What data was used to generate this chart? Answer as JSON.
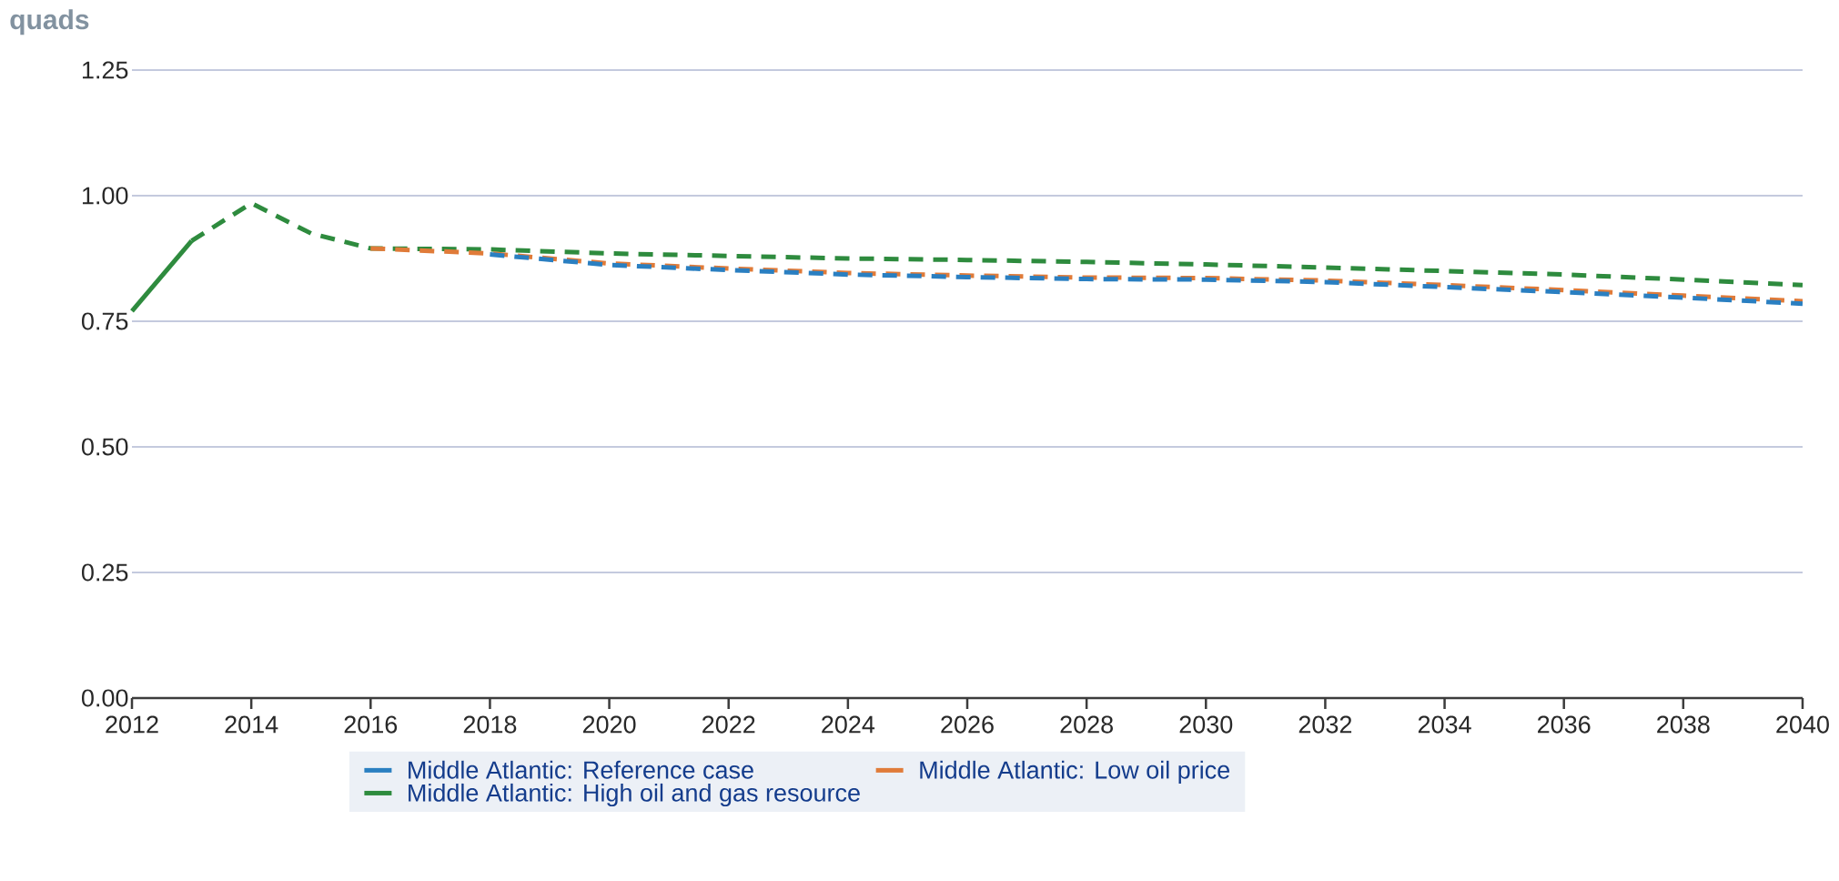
{
  "chart_data": {
    "type": "line",
    "ylabel": "quads",
    "xlim": [
      2012,
      2040
    ],
    "ylim": [
      0,
      1.25
    ],
    "xticks": [
      2012,
      2014,
      2016,
      2018,
      2020,
      2022,
      2024,
      2026,
      2028,
      2030,
      2032,
      2034,
      2036,
      2038,
      2040
    ],
    "yticks": [
      {
        "value": 0,
        "label": "0.00"
      },
      {
        "value": 0.25,
        "label": "0.25"
      },
      {
        "value": 0.5,
        "label": "0.50"
      },
      {
        "value": 0.75,
        "label": "0.75"
      },
      {
        "value": 1,
        "label": "1.00"
      },
      {
        "value": 1.25,
        "label": "1.25"
      }
    ],
    "grid": "y",
    "legend": "bottom",
    "series": [
      {
        "name": "Middle Atlantic: Reference case",
        "color": "#2a7fc1",
        "line_style": "dashed",
        "x": [
          2018,
          2020,
          2022,
          2024,
          2026,
          2028,
          2030,
          2032,
          2034,
          2036,
          2038,
          2040
        ],
        "values": [
          0.883,
          0.862,
          0.852,
          0.843,
          0.838,
          0.834,
          0.833,
          0.828,
          0.818,
          0.808,
          0.797,
          0.785
        ]
      },
      {
        "name": "Middle Atlantic: Low oil price",
        "color": "#e07b39",
        "line_style": "dashed",
        "x": [
          2016,
          2018,
          2020,
          2022,
          2024,
          2026,
          2028,
          2030,
          2032,
          2034,
          2036,
          2038,
          2040
        ],
        "values": [
          0.895,
          0.885,
          0.865,
          0.855,
          0.846,
          0.841,
          0.837,
          0.836,
          0.831,
          0.822,
          0.812,
          0.801,
          0.79
        ]
      },
      {
        "name": "Middle Atlantic: High oil and gas resource",
        "color": "#2e8b3e",
        "line_style": "dashed",
        "x": [
          2013,
          2014,
          2015,
          2016,
          2018,
          2020,
          2022,
          2024,
          2026,
          2028,
          2030,
          2032,
          2034,
          2036,
          2038,
          2040
        ],
        "values": [
          0.91,
          0.985,
          0.925,
          0.895,
          0.893,
          0.885,
          0.88,
          0.875,
          0.872,
          0.868,
          0.863,
          0.857,
          0.85,
          0.843,
          0.833,
          0.822
        ]
      },
      {
        "color": "#2e8b3e",
        "line_style": "solid",
        "x": [
          2012,
          2013
        ],
        "values": [
          0.77,
          0.91
        ]
      }
    ]
  }
}
